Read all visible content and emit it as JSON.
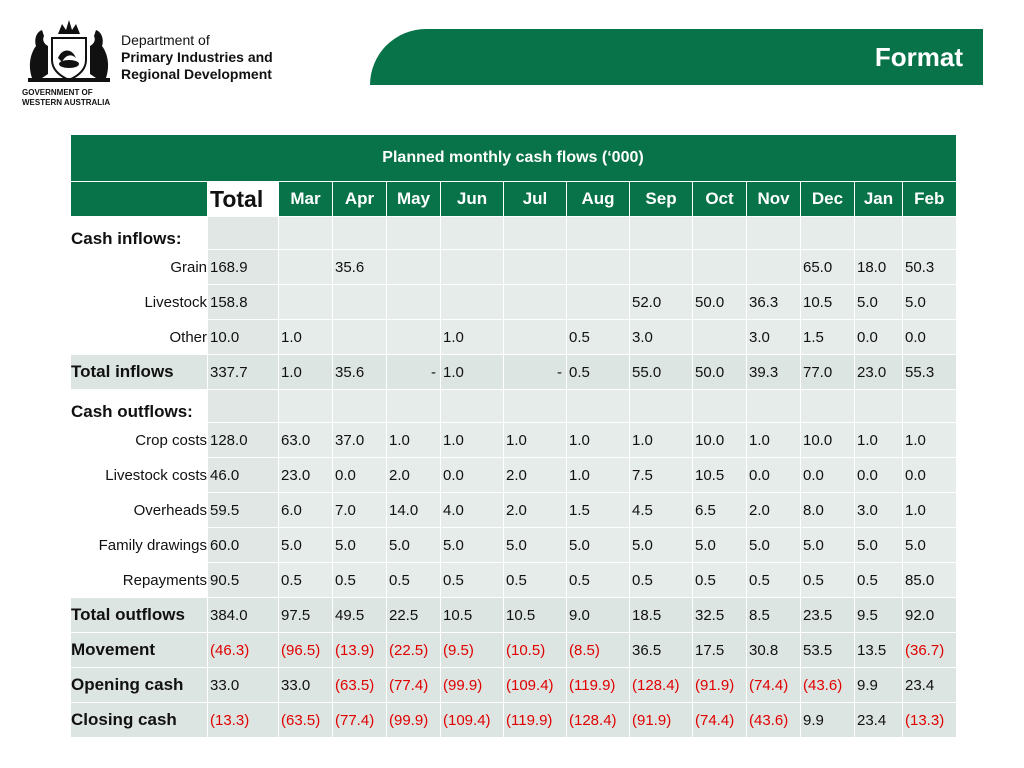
{
  "header": {
    "gov_line1": "GOVERNMENT OF",
    "gov_line2": "WESTERN AUSTRALIA",
    "dept_line1": "Department of",
    "dept_line2": "Primary Industries and",
    "dept_line3": "Regional Development",
    "slide_title": "Format",
    "accent_color": "#087348"
  },
  "table": {
    "title": "Planned monthly cash flows (‘000)",
    "total_header": "Total",
    "months": [
      "Mar",
      "Apr",
      "May",
      "Jun",
      "Jul",
      "Aug",
      "Sep",
      "Oct",
      "Nov",
      "Dec",
      "Jan",
      "Feb"
    ],
    "rows": [
      {
        "label": "Cash inflows:",
        "type": "section",
        "total": "",
        "values": [
          "",
          "",
          "",
          "",
          "",
          "",
          "",
          "",
          "",
          "",
          "",
          ""
        ]
      },
      {
        "label": "Grain",
        "type": "item",
        "total": "168.9",
        "values": [
          "",
          "35.6",
          "",
          "",
          "",
          "",
          "",
          "",
          "",
          "65.0",
          "18.0",
          "50.3"
        ]
      },
      {
        "label": "Livestock",
        "type": "item",
        "total": "158.8",
        "values": [
          "",
          "",
          "",
          "",
          "",
          "",
          "52.0",
          "50.0",
          "36.3",
          "10.5",
          "5.0",
          "5.0"
        ]
      },
      {
        "label": "Other",
        "type": "item",
        "total": "10.0",
        "values": [
          "1.0",
          "",
          "",
          "1.0",
          "",
          "0.5",
          "3.0",
          "",
          "3.0",
          "1.5",
          "0.0",
          "0.0"
        ]
      },
      {
        "label": "Total inflows",
        "type": "total",
        "total": "337.7",
        "values": [
          "1.0",
          "35.6",
          "-",
          "1.0",
          "-",
          "0.5",
          "55.0",
          "50.0",
          "39.3",
          "77.0",
          "23.0",
          "55.3"
        ]
      },
      {
        "label": "Cash outflows:",
        "type": "section",
        "total": "",
        "values": [
          "",
          "",
          "",
          "",
          "",
          "",
          "",
          "",
          "",
          "",
          "",
          ""
        ]
      },
      {
        "label": "Crop costs",
        "type": "item",
        "total": "128.0",
        "values": [
          "63.0",
          "37.0",
          "1.0",
          "1.0",
          "1.0",
          "1.0",
          "1.0",
          "10.0",
          "1.0",
          "10.0",
          "1.0",
          "1.0"
        ]
      },
      {
        "label": "Livestock costs",
        "type": "item",
        "total": "46.0",
        "values": [
          "23.0",
          "0.0",
          "2.0",
          "0.0",
          "2.0",
          "1.0",
          "7.5",
          "10.5",
          "0.0",
          "0.0",
          "0.0",
          "0.0"
        ]
      },
      {
        "label": "Overheads",
        "type": "item",
        "total": "59.5",
        "values": [
          "6.0",
          "7.0",
          "14.0",
          "4.0",
          "2.0",
          "1.5",
          "4.5",
          "6.5",
          "2.0",
          "8.0",
          "3.0",
          "1.0"
        ]
      },
      {
        "label": "Family drawings",
        "type": "item",
        "total": "60.0",
        "values": [
          "5.0",
          "5.0",
          "5.0",
          "5.0",
          "5.0",
          "5.0",
          "5.0",
          "5.0",
          "5.0",
          "5.0",
          "5.0",
          "5.0"
        ]
      },
      {
        "label": "Repayments",
        "type": "item",
        "total": "90.5",
        "values": [
          "0.5",
          "0.5",
          "0.5",
          "0.5",
          "0.5",
          "0.5",
          "0.5",
          "0.5",
          "0.5",
          "0.5",
          "0.5",
          "85.0"
        ]
      },
      {
        "label": "Total outflows",
        "type": "total",
        "total": "384.0",
        "values": [
          "97.5",
          "49.5",
          "22.5",
          "10.5",
          "10.5",
          "9.0",
          "18.5",
          "32.5",
          "8.5",
          "23.5",
          "9.5",
          "92.0"
        ]
      },
      {
        "label": "Movement",
        "type": "total",
        "total": "(46.3)",
        "values": [
          "(96.5)",
          "(13.9)",
          "(22.5)",
          "(9.5)",
          "(10.5)",
          "(8.5)",
          "36.5",
          "17.5",
          "30.8",
          "53.5",
          "13.5",
          "(36.7)"
        ]
      },
      {
        "label": "Opening cash",
        "type": "total",
        "total": "33.0",
        "values": [
          "33.0",
          "(63.5)",
          "(77.4)",
          "(99.9)",
          "(109.4)",
          "(119.9)",
          "(128.4)",
          "(91.9)",
          "(74.4)",
          "(43.6)",
          "9.9",
          "23.4"
        ]
      },
      {
        "label": "Closing cash",
        "type": "total",
        "total": "(13.3)",
        "values": [
          "(63.5)",
          "(77.4)",
          "(99.9)",
          "(109.4)",
          "(119.9)",
          "(128.4)",
          "(91.9)",
          "(74.4)",
          "(43.6)",
          "9.9",
          "23.4",
          "(13.3)"
        ]
      }
    ],
    "negative_color": "#e00000"
  }
}
